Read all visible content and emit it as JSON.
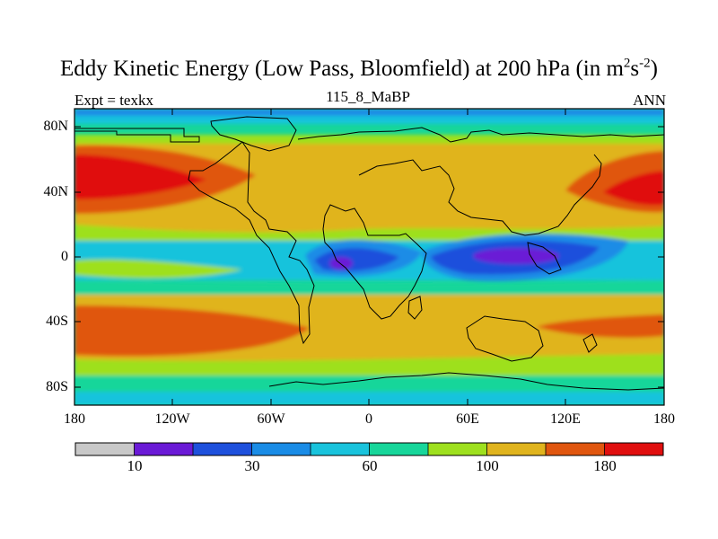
{
  "map": {
    "title_main": "Eddy Kinetic Energy (Low Pass, Bloomfield) at 200 hPa (in m",
    "title_sup1": "2",
    "title_mid": "s",
    "title_sup2": "-2",
    "title_end": ")",
    "left_label": "Expt = texkx",
    "center_label": "115_8_MaBP",
    "right_label": "ANN",
    "y_ticks": [
      "80N",
      "40N",
      "0",
      "40S",
      "80S"
    ],
    "x_ticks": [
      "180",
      "120W",
      "60W",
      "0",
      "60E",
      "120E",
      "180"
    ],
    "region": {
      "lon_range": [
        -180,
        180
      ],
      "lat_range": [
        -90,
        90
      ]
    },
    "colorbar": {
      "colors": [
        "#c8c8c8",
        "#6a1ad6",
        "#1e50dc",
        "#1a8ce6",
        "#19c3dc",
        "#17d69a",
        "#9ee01e",
        "#e0b41e",
        "#e0560f",
        "#e00f0f"
      ],
      "labels": [
        "10",
        "30",
        "60",
        "100",
        "180"
      ]
    },
    "colors": {
      "ocean": "#17d69a",
      "land_outline": "#000000"
    }
  }
}
